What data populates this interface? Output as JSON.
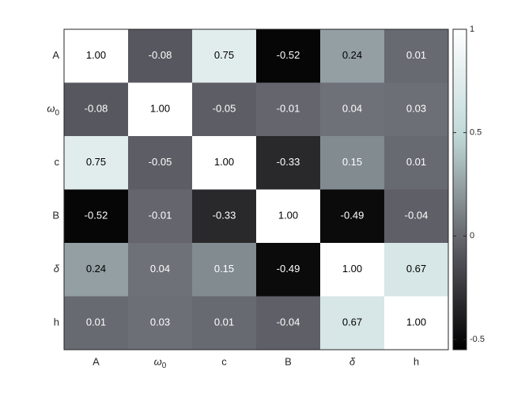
{
  "chart_data": {
    "type": "heatmap",
    "labels": [
      "A",
      "ω",
      "c",
      "B",
      "δ",
      "h"
    ],
    "label_subscripts": [
      "",
      "0",
      "",
      "",
      "",
      ""
    ],
    "matrix": [
      [
        1.0,
        -0.08,
        0.75,
        -0.52,
        0.24,
        0.01
      ],
      [
        -0.08,
        1.0,
        -0.05,
        -0.01,
        0.04,
        0.03
      ],
      [
        0.75,
        -0.05,
        1.0,
        -0.33,
        0.15,
        0.01
      ],
      [
        -0.52,
        -0.01,
        -0.33,
        1.0,
        -0.49,
        -0.04
      ],
      [
        0.24,
        0.04,
        0.15,
        -0.49,
        1.0,
        0.67
      ],
      [
        0.01,
        0.03,
        0.01,
        -0.04,
        0.67,
        1.0
      ]
    ],
    "value_format": "2 decimals",
    "colorbar": {
      "range": [
        -0.55,
        1.0
      ],
      "ticks": [
        -0.5,
        0,
        0.5,
        1
      ],
      "tick_labels": [
        "-0.5",
        "0",
        "0.5",
        "1"
      ],
      "colors": [
        "#000000",
        "#606068",
        "#c0d8d8",
        "#ffffff"
      ]
    }
  }
}
